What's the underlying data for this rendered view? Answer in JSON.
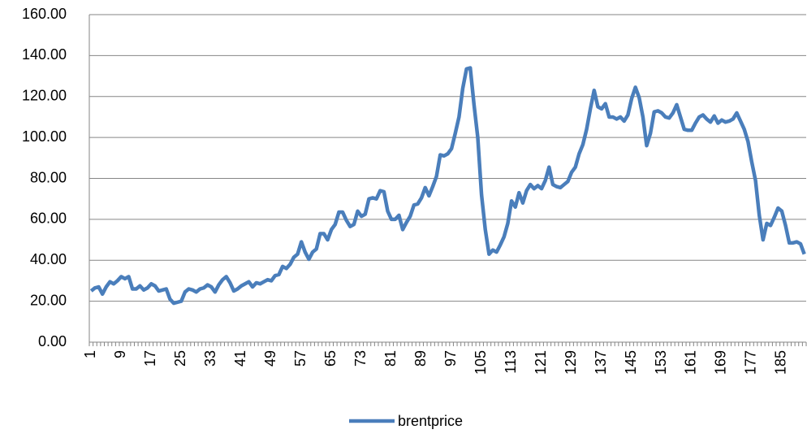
{
  "chart_data": {
    "type": "line",
    "categories": [
      "1",
      null,
      null,
      null,
      null,
      null,
      null,
      null,
      "9",
      null,
      null,
      null,
      null,
      null,
      null,
      null,
      "17",
      null,
      null,
      null,
      null,
      null,
      null,
      null,
      "25",
      null,
      null,
      null,
      null,
      null,
      null,
      null,
      "33",
      null,
      null,
      null,
      null,
      null,
      null,
      null,
      "41",
      null,
      null,
      null,
      null,
      null,
      null,
      null,
      "49",
      null,
      null,
      null,
      null,
      null,
      null,
      null,
      "57",
      null,
      null,
      null,
      null,
      null,
      null,
      null,
      "65",
      null,
      null,
      null,
      null,
      null,
      null,
      null,
      "73",
      null,
      null,
      null,
      null,
      null,
      null,
      null,
      "81",
      null,
      null,
      null,
      null,
      null,
      null,
      null,
      "89",
      null,
      null,
      null,
      null,
      null,
      null,
      null,
      "97",
      null,
      null,
      null,
      null,
      null,
      null,
      null,
      "105",
      null,
      null,
      null,
      null,
      null,
      null,
      null,
      "113",
      null,
      null,
      null,
      null,
      null,
      null,
      null,
      "121",
      null,
      null,
      null,
      null,
      null,
      null,
      null,
      "129",
      null,
      null,
      null,
      null,
      null,
      null,
      null,
      "137",
      null,
      null,
      null,
      null,
      null,
      null,
      null,
      "145",
      null,
      null,
      null,
      null,
      null,
      null,
      null,
      "153",
      null,
      null,
      null,
      null,
      null,
      null,
      null,
      "161",
      null,
      null,
      null,
      null,
      null,
      null,
      null,
      "169",
      null,
      null,
      null,
      null,
      null,
      null,
      null,
      "177",
      null,
      null,
      null,
      null,
      null,
      null,
      null,
      "185",
      null,
      null,
      null,
      null,
      null,
      null
    ],
    "series": [
      {
        "name": "brentprice",
        "color": "#4a7ebb",
        "values": [
          25,
          26.5,
          27,
          23.5,
          27,
          29.5,
          28.5,
          30,
          32,
          31,
          32,
          26,
          26,
          27.5,
          25.5,
          26.5,
          28.5,
          27.5,
          25,
          25.5,
          26,
          21,
          19,
          19.5,
          20,
          24.5,
          26,
          25.5,
          24.5,
          26,
          26.5,
          28,
          27,
          24.5,
          28,
          30.5,
          32,
          29,
          25,
          26,
          27.5,
          28.5,
          29.5,
          27,
          29,
          28.5,
          29.5,
          30.5,
          30,
          32.5,
          33,
          37,
          36,
          38,
          41.5,
          43,
          49,
          44,
          40.5,
          44,
          45.5,
          53,
          53,
          50,
          55,
          57.5,
          63.5,
          63.5,
          59.5,
          56.5,
          57.5,
          64,
          61.5,
          62.5,
          70,
          70.5,
          70,
          74,
          73.5,
          64,
          60,
          60,
          62,
          55,
          58.5,
          61.5,
          67,
          67.5,
          70.5,
          75.5,
          71.5,
          76,
          81,
          91.5,
          91,
          92,
          94.5,
          102,
          110,
          124,
          133.5,
          134,
          116,
          100,
          72,
          55,
          43,
          45,
          44,
          47.5,
          51.5,
          58,
          69,
          66,
          73,
          68,
          74,
          77,
          75,
          76.5,
          75,
          79,
          85.5,
          77,
          76,
          75.5,
          77,
          78.5,
          83,
          85.5,
          92,
          96.5,
          104,
          114,
          123,
          115,
          114,
          116.5,
          110,
          110,
          109,
          110,
          108,
          111,
          119,
          124.5,
          119.5,
          110,
          96,
          102,
          112.5,
          113,
          112,
          110,
          109.5,
          112,
          116,
          110,
          104,
          103.5,
          103.5,
          107,
          110,
          111,
          109,
          107.5,
          110.5,
          107,
          108.5,
          107.5,
          108,
          109,
          112,
          108,
          104,
          98,
          88,
          79,
          62,
          50,
          58,
          57,
          61,
          65.5,
          64,
          57,
          48.5,
          48.5,
          49,
          48,
          43
        ]
      }
    ],
    "ylim": [
      0,
      160
    ],
    "yticks": [
      {
        "value": 0,
        "label": "0.00"
      },
      {
        "value": 20,
        "label": "20.00"
      },
      {
        "value": 40,
        "label": "40.00"
      },
      {
        "value": 60,
        "label": "60.00"
      },
      {
        "value": 80,
        "label": "80.00"
      },
      {
        "value": 100,
        "label": "100.00"
      },
      {
        "value": 120,
        "label": "120.00"
      },
      {
        "value": 140,
        "label": "140.00"
      },
      {
        "value": 160,
        "label": "160.00"
      }
    ],
    "grid": true,
    "legend": "bottom"
  }
}
